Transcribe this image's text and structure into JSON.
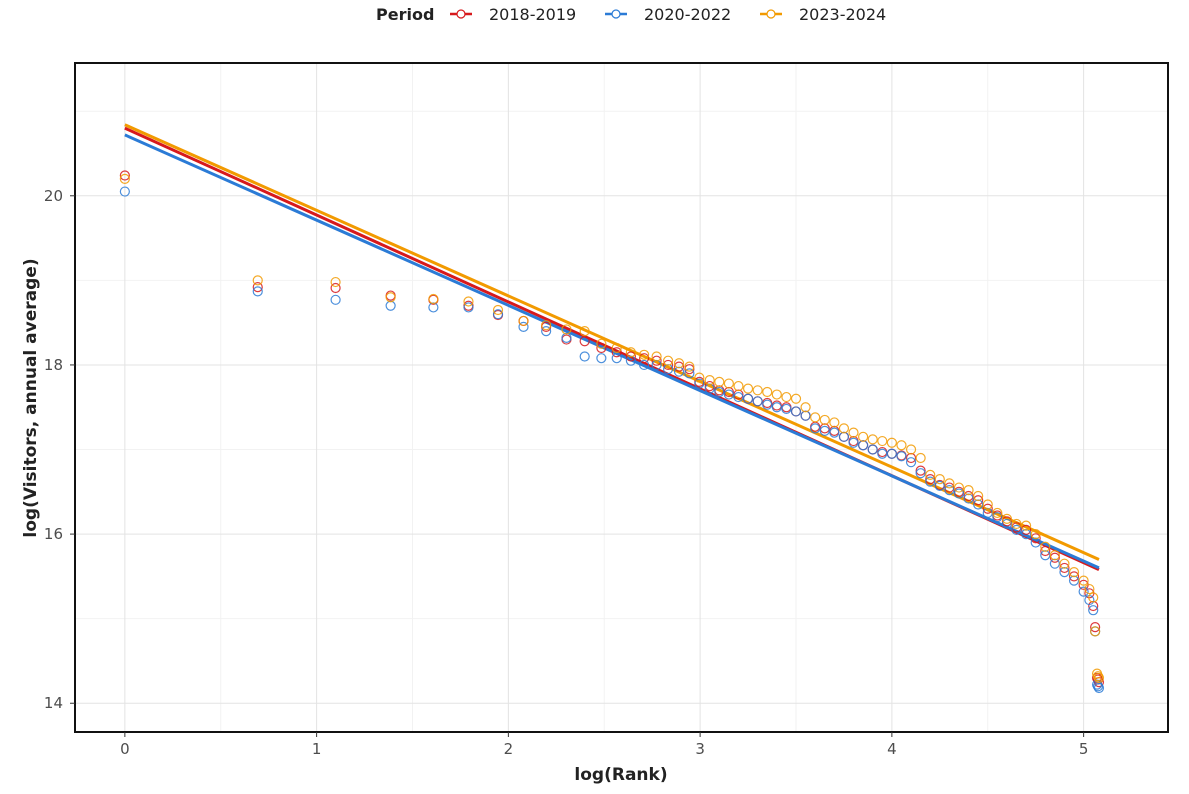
{
  "chart_data": {
    "type": "scatter",
    "xlabel": "log(Rank)",
    "ylabel": "log(Visitors, annual average)",
    "xlim": [
      -0.26,
      5.44
    ],
    "ylim": [
      13.66,
      21.57
    ],
    "xticks": [
      "0",
      "1",
      "2",
      "3",
      "4",
      "5"
    ],
    "yticks": [
      "14",
      "16",
      "18",
      "20"
    ],
    "grid": true,
    "legend": {
      "title": "Period",
      "position": "top"
    },
    "x": [
      0,
      0.693,
      1.099,
      1.386,
      1.609,
      1.792,
      1.946,
      2.079,
      2.197,
      2.303,
      2.398,
      2.485,
      2.565,
      2.639,
      2.708,
      2.773,
      2.833,
      2.89,
      2.944,
      2.996,
      3.05,
      3.1,
      3.15,
      3.2,
      3.25,
      3.3,
      3.35,
      3.4,
      3.45,
      3.5,
      3.55,
      3.6,
      3.65,
      3.7,
      3.75,
      3.8,
      3.85,
      3.9,
      3.95,
      4.0,
      4.05,
      4.1,
      4.15,
      4.2,
      4.25,
      4.3,
      4.35,
      4.4,
      4.45,
      4.5,
      4.55,
      4.6,
      4.65,
      4.7,
      4.75,
      4.8,
      4.85,
      4.9,
      4.95,
      5.0,
      5.03,
      5.05,
      5.06,
      5.07,
      5.075,
      5.08
    ],
    "series": [
      {
        "name": "2018-2019",
        "color": "#d7191c",
        "values": [
          20.24,
          18.92,
          18.91,
          18.82,
          18.77,
          18.7,
          18.59,
          18.52,
          18.45,
          18.3,
          18.28,
          18.2,
          18.15,
          18.1,
          18.08,
          18.05,
          18.0,
          17.98,
          17.95,
          17.8,
          17.75,
          17.7,
          17.68,
          17.65,
          17.6,
          17.57,
          17.55,
          17.52,
          17.5,
          17.45,
          17.4,
          17.27,
          17.25,
          17.22,
          17.15,
          17.1,
          17.05,
          17.0,
          16.97,
          16.95,
          16.93,
          16.9,
          16.75,
          16.65,
          16.58,
          16.55,
          16.5,
          16.45,
          16.4,
          16.3,
          16.22,
          16.15,
          16.08,
          16.05,
          15.95,
          15.8,
          15.72,
          15.6,
          15.5,
          15.4,
          15.3,
          15.15,
          14.9,
          14.3,
          14.28,
          14.25
        ],
        "fit": [
          [
            0,
            20.8
          ],
          [
            5.08,
            15.58
          ]
        ]
      },
      {
        "name": "2020-2022",
        "color": "#2b7bd6",
        "values": [
          20.05,
          18.87,
          18.77,
          18.7,
          18.68,
          18.68,
          18.6,
          18.45,
          18.4,
          18.32,
          18.1,
          18.08,
          18.08,
          18.05,
          18.0,
          18.0,
          17.95,
          17.92,
          17.9,
          17.78,
          17.72,
          17.68,
          17.65,
          17.62,
          17.6,
          17.57,
          17.53,
          17.5,
          17.48,
          17.45,
          17.4,
          17.25,
          17.22,
          17.2,
          17.15,
          17.08,
          17.05,
          17.0,
          16.95,
          16.95,
          16.92,
          16.85,
          16.72,
          16.62,
          16.57,
          16.52,
          16.48,
          16.42,
          16.35,
          16.25,
          16.2,
          16.12,
          16.05,
          16.0,
          15.9,
          15.75,
          15.65,
          15.55,
          15.45,
          15.32,
          15.22,
          15.1,
          14.85,
          14.22,
          14.2,
          14.18
        ],
        "fit": [
          [
            0,
            20.72
          ],
          [
            5.08,
            15.6
          ]
        ]
      },
      {
        "name": "2023-2024",
        "color": "#f29a00",
        "values": [
          20.2,
          19.0,
          18.98,
          18.8,
          18.78,
          18.75,
          18.65,
          18.52,
          18.47,
          18.42,
          18.4,
          18.25,
          18.2,
          18.15,
          18.12,
          18.1,
          18.05,
          18.02,
          17.98,
          17.85,
          17.82,
          17.8,
          17.78,
          17.75,
          17.72,
          17.7,
          17.68,
          17.65,
          17.62,
          17.6,
          17.5,
          17.38,
          17.35,
          17.32,
          17.25,
          17.2,
          17.15,
          17.12,
          17.1,
          17.08,
          17.05,
          17.0,
          16.9,
          16.7,
          16.65,
          16.6,
          16.55,
          16.52,
          16.45,
          16.35,
          16.25,
          16.18,
          16.12,
          16.1,
          16.0,
          15.85,
          15.75,
          15.65,
          15.55,
          15.45,
          15.35,
          15.25,
          14.85,
          14.35,
          14.32,
          14.3
        ],
        "fit": [
          [
            0,
            20.84
          ],
          [
            5.08,
            15.7
          ]
        ]
      }
    ]
  }
}
